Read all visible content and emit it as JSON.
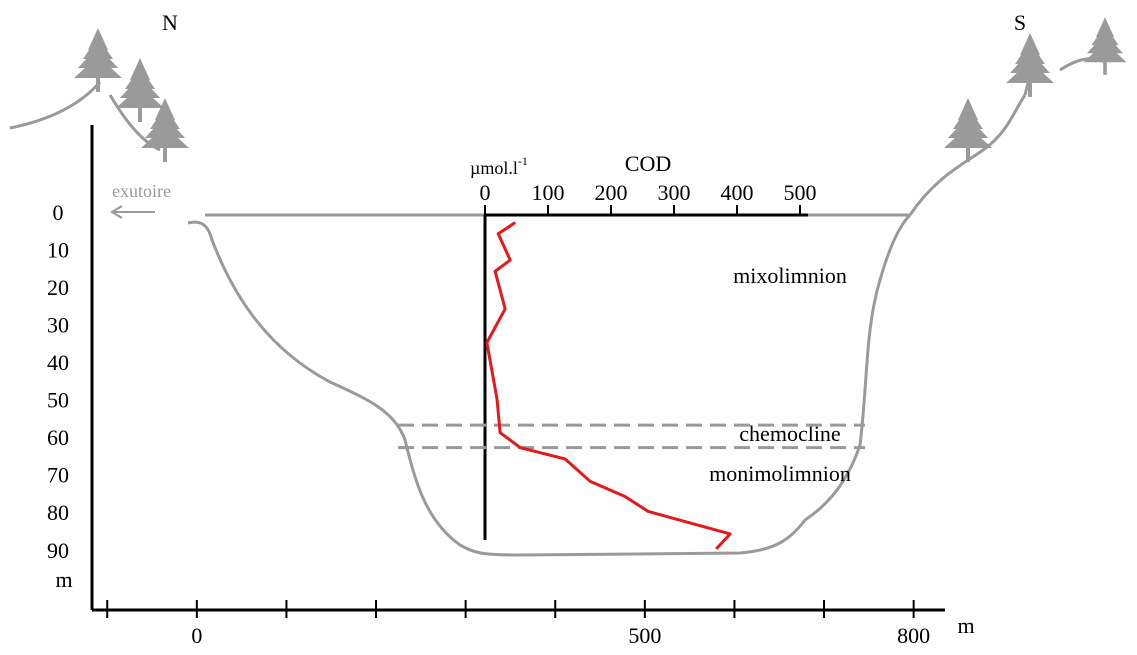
{
  "chart_data": {
    "type": "line",
    "north_label": "N",
    "south_label": "S",
    "outlet_label": "exutoire",
    "cod_title": "COD",
    "cod_unit": "µmol.l",
    "cod_unit_exponent": "-1",
    "y_unit": "m",
    "x_unit": "m",
    "layers": {
      "mixolimnion": "mixolimnion",
      "chemocline": "chemocline",
      "monimolimnion": "monimolimnion"
    },
    "ylim": [
      -24,
      105
    ],
    "yticks": [
      0,
      10,
      20,
      30,
      40,
      50,
      60,
      70,
      80,
      90
    ],
    "xlim": [
      -117,
      835
    ],
    "xticks": [
      -100,
      0,
      100,
      200,
      300,
      400,
      500,
      600,
      700,
      800
    ],
    "xlabeled_ticks": [
      0,
      500,
      800
    ],
    "codlim": [
      0,
      500
    ],
    "codticks": [
      0,
      100,
      200,
      300,
      400,
      500
    ],
    "chemocline_depths": [
      56,
      62
    ],
    "profile": {
      "name": "COD",
      "color": "#e31a1c",
      "depth": [
        2,
        5,
        12,
        15,
        25,
        34,
        49,
        58,
        62,
        65,
        71,
        75,
        79,
        85,
        89
      ],
      "cod": [
        48,
        21,
        40,
        16,
        32,
        3,
        19,
        24,
        56,
        127,
        167,
        222,
        259,
        389,
        367
      ]
    }
  }
}
